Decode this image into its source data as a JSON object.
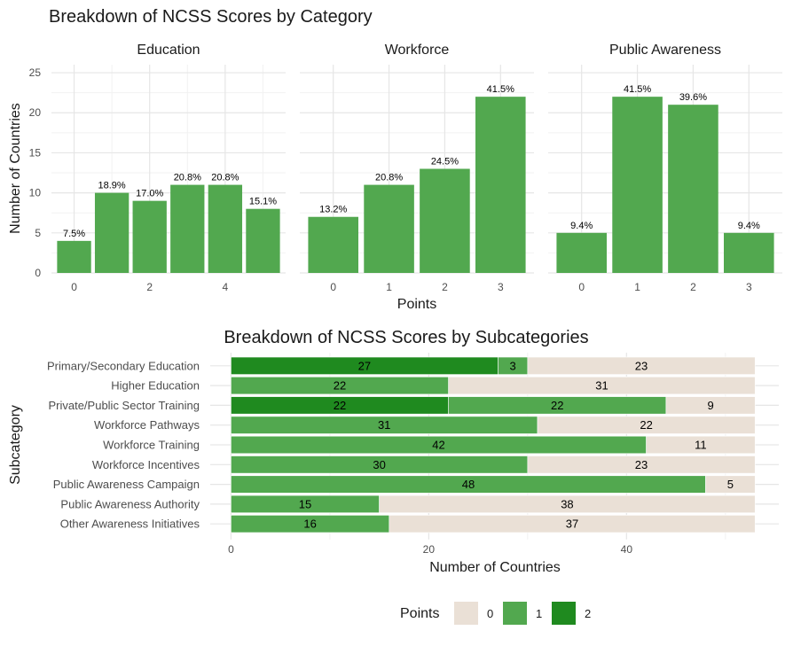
{
  "chart_data": [
    {
      "type": "bar",
      "title": "Breakdown of NCSS Scores by Category",
      "xlabel": "Points",
      "ylabel": "Number of Countries",
      "ylim": [
        0,
        26
      ],
      "y_ticks": [
        "0",
        "5",
        "10",
        "15",
        "20",
        "25"
      ],
      "grid": true,
      "bar_color": "#52a84f",
      "panels": [
        {
          "name": "Education",
          "x_ticks": [
            "0",
            "2",
            "4"
          ],
          "bars": [
            {
              "x": 0,
              "value": 4,
              "label": "7.5%"
            },
            {
              "x": 1,
              "value": 10,
              "label": "18.9%"
            },
            {
              "x": 2,
              "value": 9,
              "label": "17.0%"
            },
            {
              "x": 3,
              "value": 11,
              "label": "20.8%"
            },
            {
              "x": 4,
              "value": 11,
              "label": "20.8%"
            },
            {
              "x": 5,
              "value": 8,
              "label": "15.1%"
            }
          ]
        },
        {
          "name": "Workforce",
          "x_ticks": [
            "0",
            "1",
            "2",
            "3"
          ],
          "bars": [
            {
              "x": 0,
              "value": 7,
              "label": "13.2%"
            },
            {
              "x": 1,
              "value": 11,
              "label": "20.8%"
            },
            {
              "x": 2,
              "value": 13,
              "label": "24.5%"
            },
            {
              "x": 3,
              "value": 22,
              "label": "41.5%"
            }
          ]
        },
        {
          "name": "Public Awareness",
          "x_ticks": [
            "0",
            "1",
            "2",
            "3"
          ],
          "bars": [
            {
              "x": 0,
              "value": 5,
              "label": "9.4%"
            },
            {
              "x": 1,
              "value": 22,
              "label": "41.5%"
            },
            {
              "x": 2,
              "value": 21,
              "label": "39.6%"
            },
            {
              "x": 3,
              "value": 5,
              "label": "9.4%"
            }
          ]
        }
      ]
    },
    {
      "type": "bar",
      "orientation": "horizontal",
      "stacked": true,
      "title": "Breakdown of NCSS Scores by Subcategories",
      "xlabel": "Number of Countries",
      "ylabel": "Subcategory",
      "xlim": [
        0,
        53
      ],
      "x_ticks": [
        "0",
        "20",
        "40"
      ],
      "grid": true,
      "legend_title": "Points",
      "legend_position": "bottom",
      "stack_order": [
        "2",
        "1",
        "0"
      ],
      "series_colors": {
        "0": "#eae0d6",
        "1": "#52a84f",
        "2": "#1f8a1f"
      },
      "legend": [
        {
          "label": "0",
          "color": "#eae0d6"
        },
        {
          "label": "1",
          "color": "#52a84f"
        },
        {
          "label": "2",
          "color": "#1f8a1f"
        }
      ],
      "categories": [
        "Primary/Secondary Education",
        "Higher Education",
        "Private/Public Sector Training",
        "Workforce Pathways",
        "Workforce Training",
        "Workforce Incentives",
        "Public Awareness Campaign",
        "Public Awareness Authority",
        "Other Awareness Initiatives"
      ],
      "series": [
        {
          "name": "2",
          "values": [
            27,
            0,
            22,
            0,
            0,
            0,
            0,
            0,
            0
          ]
        },
        {
          "name": "1",
          "values": [
            3,
            22,
            22,
            31,
            42,
            30,
            48,
            15,
            16
          ]
        },
        {
          "name": "0",
          "values": [
            23,
            31,
            9,
            22,
            11,
            23,
            5,
            38,
            37
          ]
        }
      ]
    }
  ]
}
